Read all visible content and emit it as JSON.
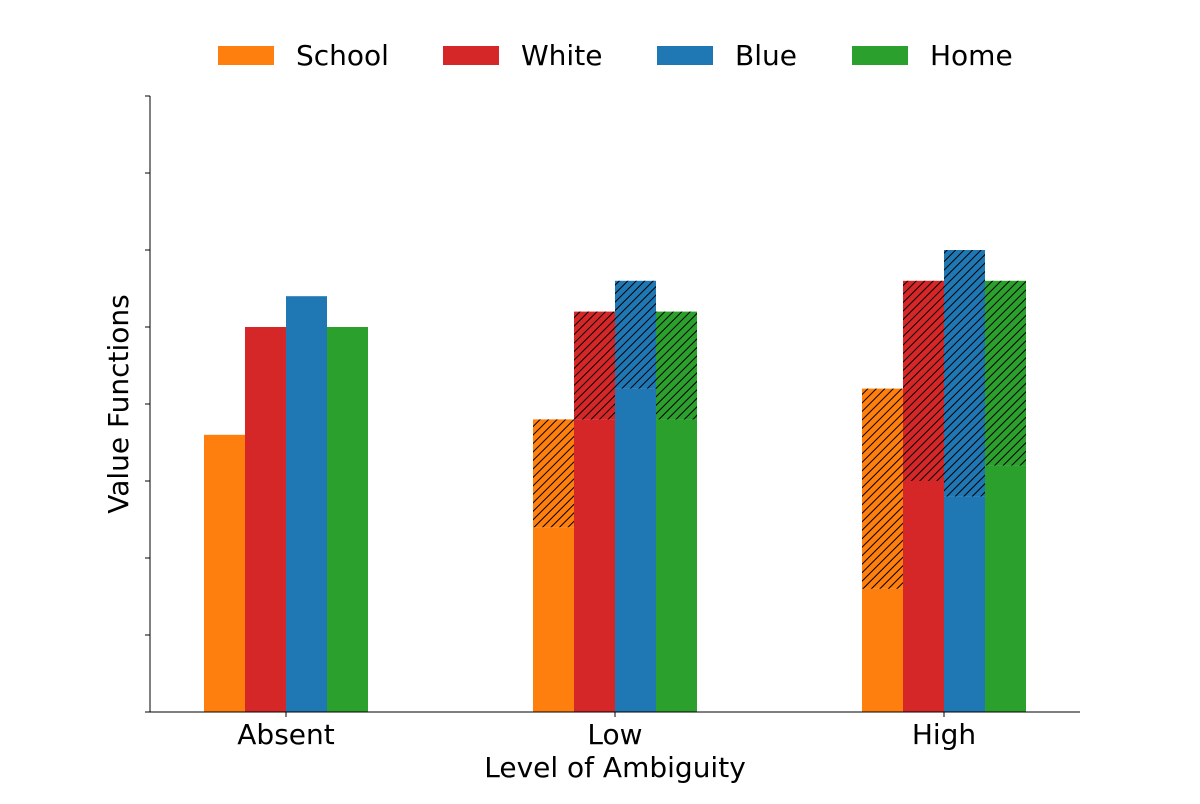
{
  "chart_data": {
    "type": "bar",
    "subtype": "stacked-hatched-grouped",
    "title": "",
    "xlabel": "Level of Ambiguity",
    "ylabel": "Value Functions",
    "categories": [
      "Absent",
      "Low",
      "High"
    ],
    "ylim": [
      0,
      8
    ],
    "y_tick_labels_shown": false,
    "y_tick_values": [
      0,
      1,
      2,
      3,
      4,
      5,
      6,
      7,
      8
    ],
    "grid": false,
    "legend": {
      "position": "top",
      "orientation": "horizontal"
    },
    "series": [
      {
        "name": "School",
        "color": "#ff7f0e",
        "base": [
          3.6,
          2.4,
          1.6
        ],
        "hatched": [
          0,
          1.4,
          2.6
        ]
      },
      {
        "name": "White",
        "color": "#d62728",
        "base": [
          5.0,
          3.8,
          3.0
        ],
        "hatched": [
          0,
          1.4,
          2.6
        ]
      },
      {
        "name": "Blue",
        "color": "#1f77b4",
        "base": [
          5.4,
          4.2,
          2.8
        ],
        "hatched": [
          0,
          1.4,
          3.2
        ]
      },
      {
        "name": "Home",
        "color": "#2ca02c",
        "base": [
          5.0,
          3.8,
          3.2
        ],
        "hatched": [
          0,
          1.4,
          2.4
        ]
      }
    ]
  }
}
